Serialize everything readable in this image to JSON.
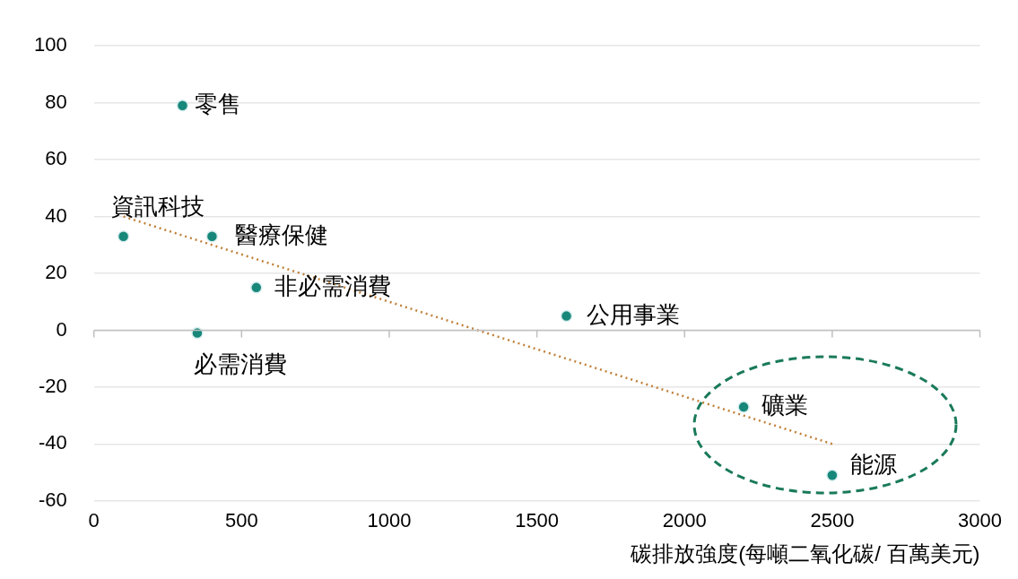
{
  "chart_data": {
    "type": "scatter",
    "xlabel": "碳排放強度(每噸二氧化碳/ 百萬美元)",
    "x": [
      300,
      100,
      400,
      550,
      350,
      1600,
      2200,
      2500
    ],
    "series": [
      {
        "color": "#17877a",
        "marker": "circle",
        "values": [
          79,
          33,
          33,
          15,
          -1,
          5,
          -27,
          -51
        ]
      },
      {
        "type": "line",
        "color": "#c0803a",
        "line_style": "dotted",
        "marker": "none",
        "x": [
          100,
          2500
        ],
        "values": [
          40,
          -40
        ]
      }
    ],
    "xlim": [
      0,
      3000
    ],
    "xticks": [
      0,
      500,
      1000,
      1500,
      2000,
      2500,
      3000
    ],
    "ylim": [
      -60,
      100
    ],
    "yticks": [
      -60,
      -40,
      -20,
      0,
      20,
      40,
      60,
      80,
      100
    ],
    "grid": "y",
    "legend": false,
    "annotations": [
      {
        "text": "零售",
        "x": 300,
        "y": 79
      },
      {
        "text": "資訊科技",
        "x": 100,
        "y": 33
      },
      {
        "text": "醫療保健",
        "x": 400,
        "y": 33
      },
      {
        "text": "非必需消費",
        "x": 550,
        "y": 15
      },
      {
        "text": "必需消費",
        "x": 350,
        "y": -1
      },
      {
        "text": "公用事業",
        "x": 1600,
        "y": 5
      },
      {
        "text": "礦業",
        "x": 2200,
        "y": -27
      },
      {
        "text": "能源",
        "x": 2500,
        "y": -51
      }
    ]
  }
}
